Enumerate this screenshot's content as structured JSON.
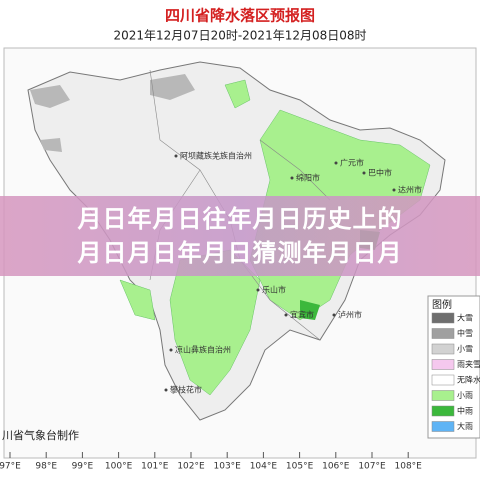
{
  "header": {
    "title": "四川省降水落区预报图",
    "subtitle": "2021年12月07日20时-2021年12月08日08时"
  },
  "overlay": {
    "lines": [
      "月日年月日往年月日历史上的",
      "月日月日年月日猜测年月日月"
    ]
  },
  "cities": [
    "阿坝藏族羌族自治州",
    "广元市",
    "绵阳市",
    "巴中市",
    "达州市",
    "乐山市",
    "宜宾市",
    "泸州市",
    "凉山彝族自治州",
    "攀枝花市"
  ],
  "legend": {
    "title": "图例",
    "items": [
      {
        "label": "大雪",
        "color": "#6e6e6e"
      },
      {
        "label": "中雪",
        "color": "#a0a0a0"
      },
      {
        "label": "小雪",
        "color": "#d2d2d2"
      },
      {
        "label": "雨夹雪",
        "color": "#f5c8ee"
      },
      {
        "label": "无降水",
        "color": "#ffffff"
      },
      {
        "label": "小雨",
        "color": "#a8f08e"
      },
      {
        "label": "中雨",
        "color": "#3cb83c"
      },
      {
        "label": "大雨",
        "color": "#5fb4f5"
      }
    ]
  },
  "credit": "川省气象台制作",
  "longitudes": [
    "97°E",
    "98°E",
    "99°E",
    "100°E",
    "101°E",
    "102°E",
    "103°E",
    "104°E",
    "105°E",
    "106°E",
    "107°E",
    "108°E"
  ]
}
